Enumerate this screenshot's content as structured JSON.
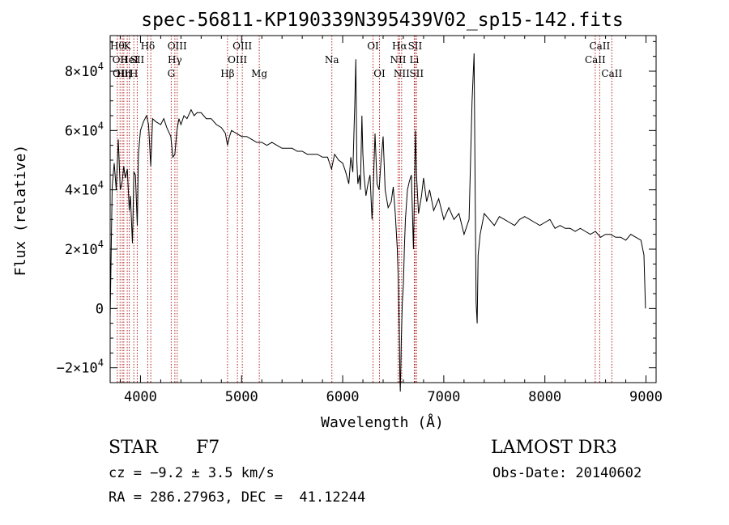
{
  "chart_data": {
    "type": "line",
    "title": "spec-56811-KP190339N395439V02_sp15-142.fits",
    "xlabel": "Wavelength (Å)",
    "ylabel": "Flux (relative)",
    "xlim": [
      3700,
      9100
    ],
    "ylim": [
      -25000,
      92000
    ],
    "x_ticks": [
      4000,
      5000,
      6000,
      7000,
      8000,
      9000
    ],
    "x_tick_labels": [
      "4000",
      "5000",
      "6000",
      "7000",
      "8000",
      "9000"
    ],
    "y_ticks": [
      -20000,
      0,
      20000,
      40000,
      60000,
      80000
    ],
    "y_tick_labels": [
      {
        "mant": "−2×10",
        "exp": "4"
      },
      {
        "mant": "0",
        "exp": ""
      },
      {
        "mant": "2×10",
        "exp": "4"
      },
      {
        "mant": "4×10",
        "exp": "4"
      },
      {
        "mant": "6×10",
        "exp": "4"
      },
      {
        "mant": "8×10",
        "exp": "4"
      }
    ],
    "line_color": "#000000",
    "marker_color": "#b22222",
    "spectrum": {
      "x": [
        3700,
        3720,
        3740,
        3760,
        3780,
        3800,
        3820,
        3835,
        3850,
        3870,
        3889,
        3900,
        3920,
        3935,
        3950,
        3968,
        3980,
        4000,
        4030,
        4060,
        4080,
        4101,
        4120,
        4150,
        4200,
        4230,
        4260,
        4300,
        4320,
        4340,
        4360,
        4380,
        4400,
        4430,
        4460,
        4500,
        4530,
        4560,
        4600,
        4650,
        4700,
        4750,
        4800,
        4840,
        4861,
        4880,
        4900,
        4950,
        5000,
        5050,
        5100,
        5150,
        5200,
        5250,
        5300,
        5350,
        5400,
        5450,
        5500,
        5550,
        5600,
        5650,
        5700,
        5750,
        5800,
        5850,
        5890,
        5920,
        5960,
        6000,
        6030,
        6060,
        6080,
        6100,
        6120,
        6130,
        6140,
        6150,
        6165,
        6175,
        6190,
        6200,
        6210,
        6230,
        6250,
        6270,
        6290,
        6300,
        6320,
        6340,
        6360,
        6380,
        6400,
        6420,
        6450,
        6480,
        6500,
        6520,
        6540,
        6550,
        6560,
        6565,
        6570,
        6575,
        6580,
        6590,
        6600,
        6610,
        6620,
        6640,
        6660,
        6680,
        6700,
        6710,
        6720,
        6730,
        6750,
        6780,
        6800,
        6830,
        6860,
        6900,
        6950,
        7000,
        7050,
        7100,
        7150,
        7200,
        7250,
        7280,
        7300,
        7310,
        7320,
        7330,
        7340,
        7360,
        7400,
        7450,
        7500,
        7550,
        7600,
        7650,
        7700,
        7750,
        7800,
        7850,
        7900,
        7950,
        8000,
        8050,
        8100,
        8150,
        8200,
        8250,
        8300,
        8350,
        8400,
        8450,
        8500,
        8550,
        8600,
        8650,
        8700,
        8750,
        8800,
        8850,
        8900,
        8950,
        8980,
        8995
      ],
      "y": [
        -3000,
        41000,
        49000,
        40000,
        57000,
        40000,
        43000,
        48000,
        44000,
        47000,
        33000,
        38000,
        22000,
        46000,
        45000,
        28000,
        52000,
        60000,
        63000,
        65000,
        62000,
        48000,
        64000,
        63000,
        62000,
        64000,
        61000,
        58000,
        51000,
        52000,
        60000,
        64000,
        62000,
        65000,
        64000,
        67000,
        65000,
        66000,
        66000,
        64000,
        64000,
        62000,
        61000,
        59000,
        55000,
        58000,
        60000,
        59000,
        58000,
        58000,
        57000,
        56000,
        56000,
        55000,
        56000,
        55000,
        54000,
        54000,
        54000,
        53000,
        53000,
        52000,
        52000,
        52000,
        51000,
        51000,
        47000,
        52000,
        50000,
        49000,
        46000,
        42000,
        51000,
        46000,
        70000,
        84000,
        50000,
        42000,
        45000,
        40000,
        65000,
        52000,
        45000,
        38000,
        42000,
        45000,
        30000,
        38000,
        59000,
        42000,
        40000,
        50000,
        58000,
        40000,
        34000,
        36000,
        41000,
        32000,
        20000,
        10000,
        -8000,
        -22000,
        -28000,
        -20000,
        -10000,
        2000,
        8000,
        20000,
        30000,
        40000,
        43000,
        45000,
        20000,
        40000,
        60000,
        45000,
        32000,
        38000,
        44000,
        36000,
        40000,
        33000,
        37000,
        30000,
        34000,
        30000,
        32000,
        25000,
        30000,
        70000,
        86000,
        40000,
        2000,
        -5000,
        18000,
        25000,
        32000,
        30000,
        28000,
        31000,
        30000,
        29000,
        28000,
        30000,
        31000,
        30000,
        29000,
        28000,
        29000,
        30000,
        27000,
        28000,
        27000,
        27000,
        26000,
        27000,
        26000,
        25000,
        26000,
        24000,
        25000,
        25000,
        24000,
        24000,
        23000,
        25000,
        24000,
        23000,
        18000,
        0
      ]
    },
    "line_markers": [
      {
        "x": 3771,
        "label": "Hθ",
        "row": 0
      },
      {
        "x": 3798,
        "label": "OII",
        "row": 1
      },
      {
        "x": 3820,
        "label": "OIII",
        "row": 2
      },
      {
        "x": 3835,
        "label": "Hη",
        "row": 2
      },
      {
        "x": 3869,
        "label": "K",
        "row": 0
      },
      {
        "x": 3889,
        "label": "HeI",
        "row": 1
      },
      {
        "x": 3934,
        "label": "H",
        "row": 2
      },
      {
        "x": 3968,
        "label": "SII",
        "row": 1
      },
      {
        "x": 4072,
        "label": "Hδ",
        "row": 0
      },
      {
        "x": 4102,
        "label": "",
        "row": 0
      },
      {
        "x": 4304,
        "label": "G",
        "row": 2
      },
      {
        "x": 4340,
        "label": "Hγ",
        "row": 1
      },
      {
        "x": 4363,
        "label": "OIII",
        "row": 0
      },
      {
        "x": 4861,
        "label": "Hβ",
        "row": 2
      },
      {
        "x": 4959,
        "label": "OIII",
        "row": 1
      },
      {
        "x": 5007,
        "label": "OIII",
        "row": 0
      },
      {
        "x": 5175,
        "label": "Mg",
        "row": 2
      },
      {
        "x": 5893,
        "label": "Na",
        "row": 1
      },
      {
        "x": 6300,
        "label": "OI",
        "row": 0
      },
      {
        "x": 6364,
        "label": "OI",
        "row": 2
      },
      {
        "x": 6548,
        "label": "NII",
        "row": 1
      },
      {
        "x": 6563,
        "label": "Hα",
        "row": 0
      },
      {
        "x": 6583,
        "label": "NII",
        "row": 2
      },
      {
        "x": 6708,
        "label": "Li",
        "row": 1
      },
      {
        "x": 6716,
        "label": "SII",
        "row": 0
      },
      {
        "x": 6731,
        "label": "SII",
        "row": 2
      },
      {
        "x": 8498,
        "label": "CaII",
        "row": 1
      },
      {
        "x": 8542,
        "label": "CaII",
        "row": 0
      },
      {
        "x": 8662,
        "label": "CaII",
        "row": 2
      }
    ]
  },
  "info": {
    "object_class": "STAR",
    "subclass": "F7",
    "survey": "LAMOST DR3",
    "cz": "cz = −9.2 ± 3.5 km/s",
    "obs_date": "Obs-Date: 20140602",
    "coords": "RA = 286.27963, DEC =  41.12244"
  }
}
